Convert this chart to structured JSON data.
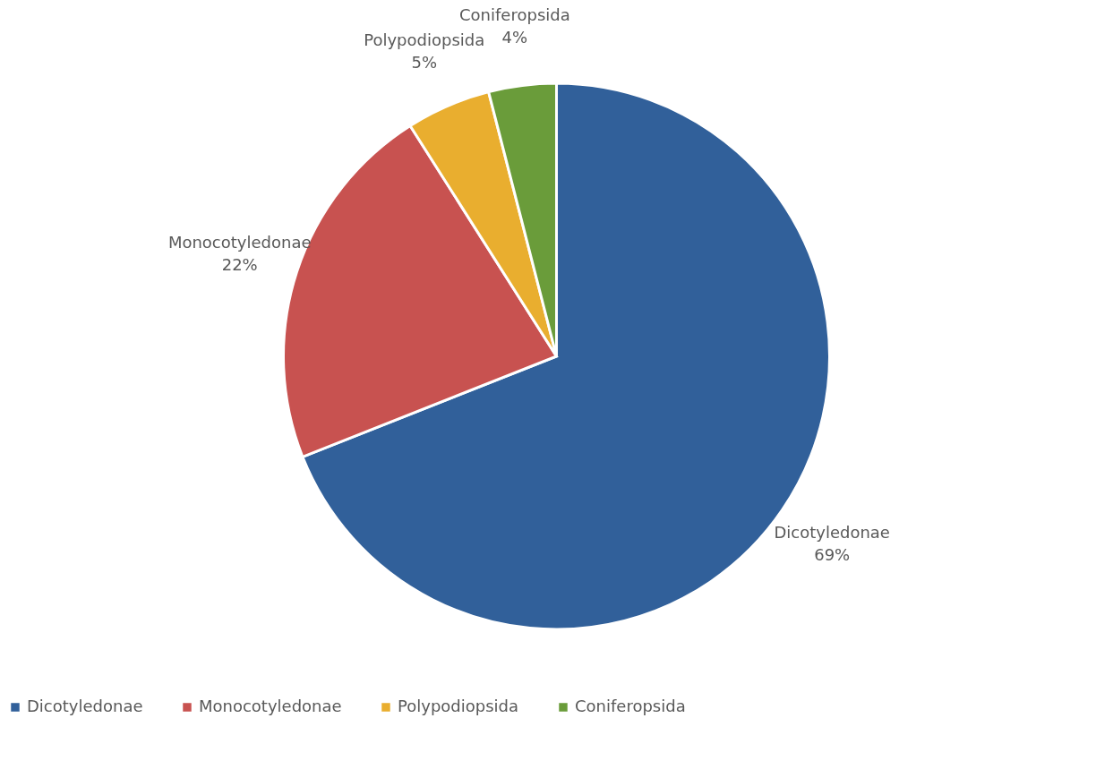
{
  "chart_data": {
    "type": "pie",
    "categories": [
      "Dicotyledonae",
      "Monocotyledonae",
      "Polypodiopsida",
      "Coniferopsida"
    ],
    "values": [
      69,
      22,
      5,
      4
    ],
    "value_labels": [
      "69%",
      "22%",
      "5%",
      "4%"
    ],
    "colors": [
      "#31609a",
      "#c85250",
      "#e9ae2f",
      "#6a9c3a"
    ],
    "legend": "bottom"
  }
}
